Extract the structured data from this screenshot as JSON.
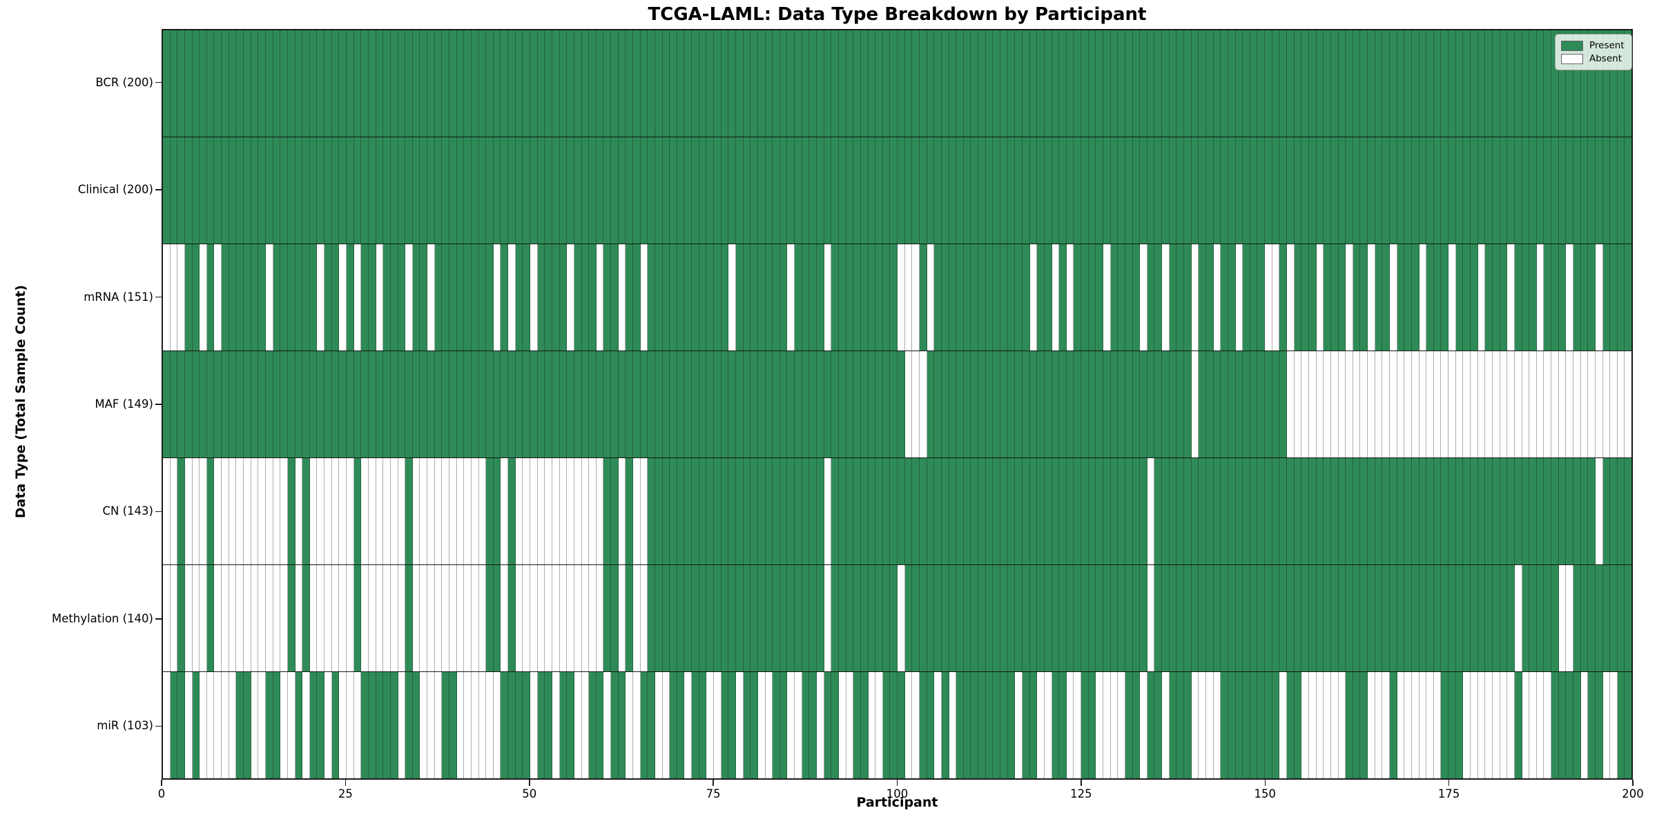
{
  "page": {
    "title": "TCGA-LAML: Data Type Breakdown by Participant"
  },
  "chart_data": {
    "type": "heatmap",
    "title": "TCGA-LAML: Data Type Breakdown by Participant",
    "xlabel": "Participant",
    "ylabel": "Data Type (Total Sample Count)",
    "x_range": [
      0,
      200
    ],
    "x_ticks": [
      0,
      25,
      50,
      75,
      100,
      125,
      150,
      175,
      200
    ],
    "n_participants": 200,
    "grid": "cell-borders",
    "legend": {
      "position": "upper-right",
      "entries": [
        {
          "label": "Present",
          "color": "#2E8B57"
        },
        {
          "label": "Absent",
          "color": "#FFFFFF"
        }
      ]
    },
    "colors": {
      "present": "#2E8B57",
      "absent": "#FFFFFF",
      "cell_border": "rgba(20,20,20,0.35)",
      "row_separator": "#151515",
      "plot_border": "#1a1a1a"
    },
    "series": [
      {
        "name": "BCR",
        "label": "BCR (200)",
        "present_count": 200,
        "absent_participants": []
      },
      {
        "name": "Clinical",
        "label": "Clinical (200)",
        "present_count": 200,
        "absent_participants": []
      },
      {
        "name": "mRNA",
        "label": "mRNA (151)",
        "present_count": 151,
        "absent_participants": [
          0,
          1,
          2,
          5,
          7,
          14,
          21,
          24,
          26,
          29,
          33,
          36,
          45,
          47,
          50,
          55,
          59,
          62,
          65,
          77,
          85,
          90,
          100,
          101,
          102,
          104,
          118,
          121,
          123,
          128,
          133,
          136,
          140,
          143,
          146,
          150,
          151,
          153,
          157,
          161,
          164,
          167,
          171,
          175,
          179,
          183,
          187,
          191,
          195
        ]
      },
      {
        "name": "MAF",
        "label": "MAF (149)",
        "present_count": 149,
        "absent_participants": [
          101,
          102,
          103,
          140,
          153,
          154,
          155,
          156,
          157,
          158,
          159,
          160,
          161,
          162,
          163,
          164,
          165,
          166,
          167,
          168,
          169,
          170,
          171,
          172,
          173,
          174,
          175,
          176,
          177,
          178,
          179,
          180,
          181,
          182,
          183,
          184,
          185,
          186,
          187,
          188,
          189,
          190,
          191,
          192,
          193,
          194,
          195,
          196,
          197,
          198,
          199
        ]
      },
      {
        "name": "CN",
        "label": "CN (143)",
        "present_count": 143,
        "absent_participants": [
          0,
          1,
          3,
          4,
          5,
          7,
          8,
          9,
          10,
          11,
          12,
          13,
          14,
          15,
          16,
          18,
          20,
          21,
          22,
          23,
          24,
          25,
          27,
          28,
          29,
          30,
          31,
          32,
          34,
          35,
          36,
          37,
          38,
          39,
          40,
          41,
          42,
          43,
          46,
          48,
          49,
          50,
          51,
          52,
          53,
          54,
          55,
          56,
          57,
          58,
          59,
          62,
          64,
          65,
          90,
          134,
          195
        ]
      },
      {
        "name": "Methylation",
        "label": "Methylation (140)",
        "present_count": 140,
        "absent_participants": [
          0,
          1,
          3,
          4,
          5,
          7,
          8,
          9,
          10,
          11,
          12,
          13,
          14,
          15,
          16,
          18,
          20,
          21,
          22,
          23,
          24,
          25,
          27,
          28,
          29,
          30,
          31,
          32,
          34,
          35,
          36,
          37,
          38,
          39,
          40,
          41,
          42,
          43,
          46,
          48,
          49,
          50,
          51,
          52,
          53,
          54,
          55,
          56,
          57,
          58,
          59,
          62,
          64,
          65,
          90,
          100,
          134,
          184,
          190,
          191
        ]
      },
      {
        "name": "miR",
        "label": "miR (103)",
        "present_count": 103,
        "absent_participants": [
          0,
          3,
          5,
          6,
          7,
          8,
          9,
          12,
          13,
          16,
          17,
          19,
          22,
          24,
          25,
          26,
          32,
          35,
          36,
          37,
          40,
          41,
          42,
          43,
          44,
          45,
          50,
          53,
          56,
          57,
          60,
          63,
          64,
          67,
          68,
          71,
          74,
          75,
          78,
          81,
          82,
          85,
          86,
          89,
          92,
          93,
          96,
          97,
          101,
          102,
          105,
          107,
          116,
          119,
          120,
          123,
          124,
          127,
          128,
          129,
          130,
          133,
          136,
          140,
          141,
          142,
          143,
          152,
          155,
          156,
          157,
          158,
          159,
          160,
          164,
          165,
          166,
          168,
          169,
          170,
          171,
          172,
          173,
          177,
          178,
          179,
          180,
          181,
          182,
          183,
          185,
          186,
          187,
          188,
          193,
          196,
          197
        ]
      }
    ]
  },
  "layout_text": {
    "note": ""
  }
}
